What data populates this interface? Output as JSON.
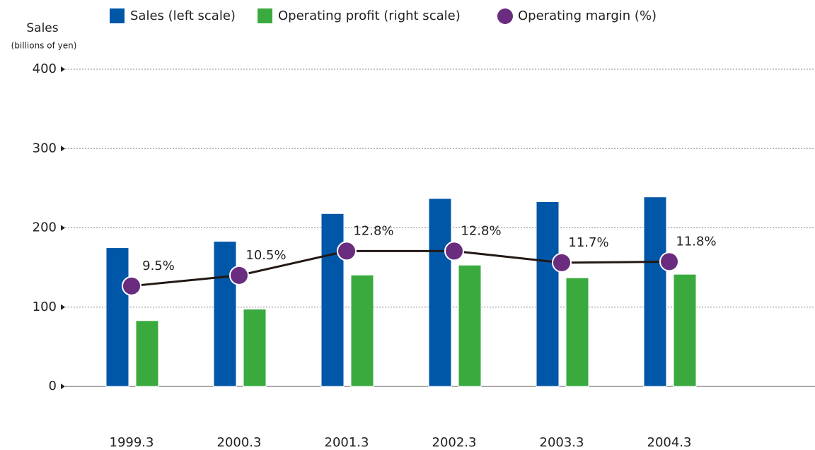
{
  "chart_data": {
    "type": "bar-line",
    "y_axis_title": "Sales",
    "y_axis_subtitle": "(billions of yen)",
    "categories": [
      "1999.3",
      "2000.3",
      "2001.3",
      "2002.3",
      "2003.3",
      "2004.3"
    ],
    "series": [
      {
        "name": "Sales (left scale)",
        "color": "#0057a8",
        "type": "bar",
        "axis": "y",
        "values": [
          175,
          183,
          218,
          237,
          233,
          239
        ]
      },
      {
        "name": "Operating profit (right scale)",
        "color": "#3aaa3f",
        "type": "bar",
        "axis": "y2",
        "values": [
          16.6,
          19.5,
          28.1,
          30.6,
          27.4,
          28.3
        ]
      },
      {
        "name": "Operating margin (%)",
        "color": "#6a2c7e",
        "type": "line",
        "axis": "y3",
        "values": [
          9.5,
          10.5,
          12.8,
          12.8,
          11.7,
          11.8
        ],
        "value_labels": [
          "9.5%",
          "10.5%",
          "12.8%",
          "12.8%",
          "11.7%",
          "11.8%"
        ]
      }
    ],
    "ylim": [
      0,
      400
    ],
    "yticks": [
      0,
      100,
      200,
      300,
      400
    ],
    "y2lim": [
      0,
      80
    ],
    "y3lim": [
      0,
      30
    ],
    "grid": true,
    "legend": "top"
  }
}
